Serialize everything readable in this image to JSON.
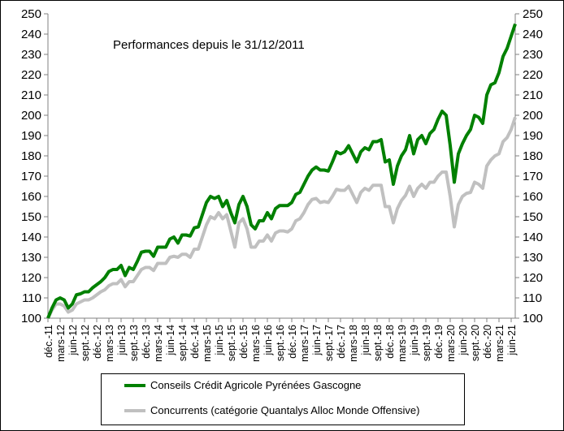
{
  "chart_data": {
    "type": "line",
    "title": "Performances depuis le 31/12/2011",
    "ylim": [
      100,
      250
    ],
    "yticks": [
      100,
      110,
      120,
      130,
      140,
      150,
      160,
      170,
      180,
      190,
      200,
      210,
      220,
      230,
      240,
      250
    ],
    "secondary_y_axis": true,
    "grid": false,
    "legend_position": "bottom",
    "x_tick_labels": [
      "déc.-11",
      "mars-12",
      "juin-12",
      "sept.-12",
      "déc.-12",
      "mars-13",
      "juin-13",
      "sept.-13",
      "déc.-13",
      "mars-14",
      "juin-14",
      "sept.-14",
      "déc.-14",
      "mars-15",
      "juin-15",
      "sept.-15",
      "déc.-15",
      "mars-16",
      "juin-16",
      "sept.-16",
      "déc.-16",
      "mars-17",
      "juin-17",
      "sept.-17",
      "déc.-17",
      "mars-18",
      "juin-18",
      "sept.-18",
      "déc.-18",
      "mars-19",
      "juin-19",
      "sept.-19",
      "déc.-19",
      "mars-20",
      "juin-20",
      "sept.-20",
      "déc.-20",
      "mars-21",
      "juin-21"
    ],
    "x_frequency": "monthly",
    "series": [
      {
        "name": "Conseils Crédit Agricole Pyrénées Gascogne",
        "color": "#008000",
        "values": [
          100,
          105,
          109,
          110,
          109,
          105,
          107,
          111.5,
          112,
          113,
          113,
          115,
          116.5,
          118,
          120,
          123,
          124,
          124,
          126,
          121,
          125,
          124,
          128,
          132.5,
          133,
          133,
          130.5,
          135,
          135,
          135,
          139,
          140,
          137,
          141,
          141,
          140.5,
          144.5,
          145,
          151,
          157,
          160,
          159,
          160,
          155,
          158,
          152,
          147,
          156,
          160,
          155,
          146,
          144,
          148,
          148,
          152,
          149,
          154,
          155.5,
          155.5,
          155.5,
          157,
          161,
          162,
          166,
          170,
          173,
          174.5,
          173,
          173,
          172.5,
          177,
          182,
          181,
          182,
          185,
          181,
          177,
          182,
          184,
          183,
          187,
          187,
          188,
          177,
          178,
          166,
          175,
          180,
          183,
          190,
          181,
          188,
          190,
          186,
          191,
          193,
          198,
          202,
          200,
          185,
          167,
          181,
          186,
          190,
          193,
          200,
          199,
          196,
          210,
          215,
          216,
          221,
          229,
          233,
          239,
          245
        ]
      },
      {
        "name": "Concurrents (catégorie Quantalys Alloc Monde Offensive)",
        "color": "#c0c0c0",
        "values": [
          100,
          104,
          107,
          107,
          106,
          103,
          104,
          107,
          108,
          109,
          109,
          110,
          111.5,
          113,
          114,
          116,
          117,
          117,
          119,
          115.5,
          118,
          118,
          121,
          124,
          125,
          125,
          123.5,
          127,
          127,
          127,
          130,
          130.5,
          130,
          131.5,
          131.5,
          130,
          134,
          134,
          140,
          146,
          150,
          149,
          152,
          149,
          151,
          143,
          135,
          147,
          149,
          144,
          135,
          135,
          138,
          138,
          141,
          138,
          142,
          143,
          143,
          142.5,
          144,
          148,
          149,
          152,
          156,
          158.5,
          159,
          157,
          157.5,
          157,
          160,
          163.5,
          163,
          163,
          165,
          161,
          157,
          162,
          164,
          163,
          165.5,
          165.5,
          165.5,
          155,
          155,
          147,
          154,
          158,
          160.5,
          165,
          160,
          164,
          166,
          164,
          167,
          167,
          170,
          172,
          172,
          160,
          145,
          156,
          160,
          161.5,
          162,
          167,
          166,
          164,
          175,
          178,
          180,
          181,
          187,
          189,
          193,
          199
        ]
      }
    ]
  }
}
